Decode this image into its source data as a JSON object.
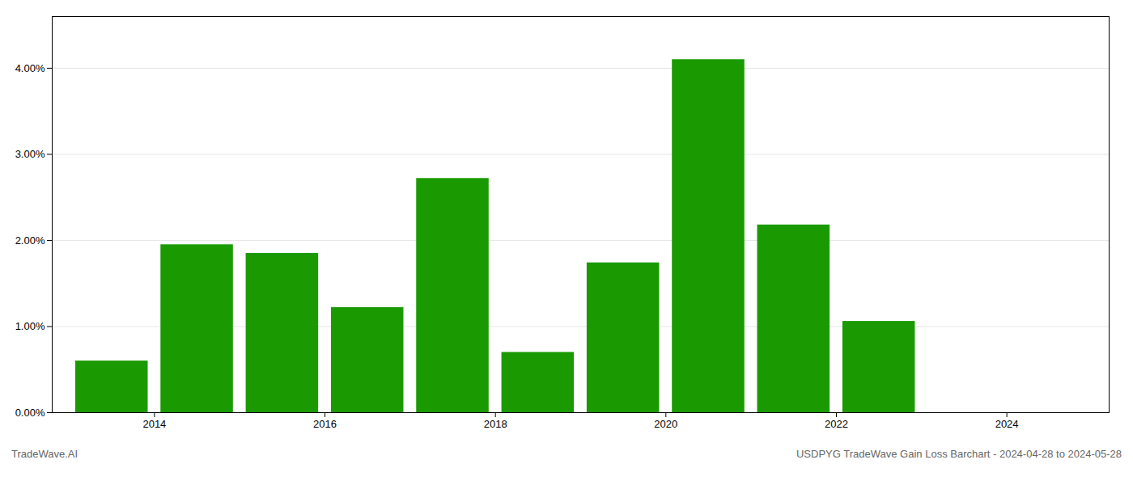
{
  "chart_data": {
    "type": "bar",
    "x": [
      2013.5,
      2014.5,
      2015.5,
      2016.5,
      2017.5,
      2018.5,
      2019.5,
      2020.5,
      2021.5,
      2022.5,
      2023.5
    ],
    "values": [
      0.006,
      0.0195,
      0.0185,
      0.0122,
      0.0272,
      0.007,
      0.0174,
      0.041,
      0.0218,
      0.0106,
      0.0
    ],
    "color": "#1a9a00",
    "xlim": [
      2012.8,
      2025.2
    ],
    "xticks": [
      2014,
      2016,
      2018,
      2020,
      2022,
      2024
    ],
    "ylim": [
      0,
      0.046
    ],
    "yticks": [
      {
        "value": 0.0,
        "label": "0.00%"
      },
      {
        "value": 0.01,
        "label": "1.00%"
      },
      {
        "value": 0.02,
        "label": "2.00%"
      },
      {
        "value": 0.03,
        "label": "3.00%"
      },
      {
        "value": 0.04,
        "label": "4.00%"
      }
    ],
    "grid": true,
    "annotations": [
      "TradeWave.AI",
      "USDPYG TradeWave Gain Loss Barchart - 2024-04-28 to 2024-05-28"
    ]
  }
}
